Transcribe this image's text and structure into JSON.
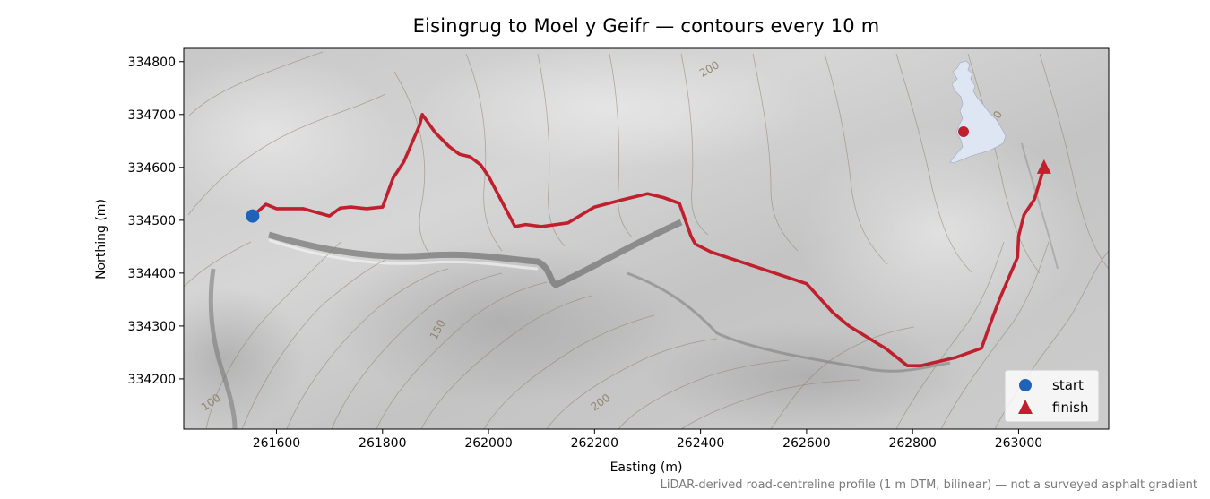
{
  "figure": {
    "title": "Eisingrug to Moel y Geifr — contours every 10 m",
    "xlabel": "Easting (m)",
    "ylabel": "Northing (m)",
    "footnote": "LiDAR-derived road-centreline profile (1 m DTM, bilinear) — not a surveyed asphalt gradient"
  },
  "chart_data": {
    "type": "line",
    "xlim": [
      261425,
      263170
    ],
    "ylim": [
      334105,
      334825
    ],
    "x_ticks": [
      261600,
      261800,
      262000,
      262200,
      262400,
      262600,
      262800,
      263000
    ],
    "y_ticks": [
      334200,
      334300,
      334400,
      334500,
      334600,
      334700,
      334800
    ],
    "grid": false,
    "basemap": "grey hillshade with brown contour lines",
    "contour_labels": [
      {
        "text": "100",
        "x": 261480,
        "y": 334150,
        "angle": -35
      },
      {
        "text": "150",
        "x": 261910,
        "y": 334290,
        "angle": -62
      },
      {
        "text": "200",
        "x": 262215,
        "y": 334150,
        "angle": -35
      },
      {
        "text": "200",
        "x": 262420,
        "y": 334780,
        "angle": -30
      },
      {
        "text": "250",
        "x": 262960,
        "y": 334685,
        "angle": -60
      }
    ],
    "series": [
      {
        "name": "route",
        "color": "#c0202e",
        "x": [
          261555,
          261580,
          261600,
          261650,
          261700,
          261720,
          261740,
          261770,
          261800,
          261820,
          261840,
          261870,
          261875,
          261900,
          261925,
          261945,
          261965,
          261985,
          262000,
          262050,
          262070,
          262100,
          262150,
          262200,
          262250,
          262300,
          262330,
          262360,
          262375,
          262382,
          262390,
          262420,
          262480,
          262600,
          262650,
          262680,
          262750,
          262790,
          262815,
          262880,
          262930,
          262945,
          262960,
          262965,
          262985,
          262998,
          263000,
          263010,
          263030,
          263048
        ],
        "y": [
          334508,
          334530,
          334522,
          334522,
          334508,
          334523,
          334525,
          334522,
          334525,
          334580,
          334610,
          334680,
          334700,
          334665,
          334640,
          334625,
          334620,
          334605,
          334583,
          334488,
          334492,
          334488,
          334495,
          334525,
          334538,
          334550,
          334543,
          334532,
          334490,
          334470,
          334455,
          334440,
          334420,
          334380,
          334325,
          334300,
          334257,
          334225,
          334225,
          334240,
          334258,
          334300,
          334340,
          334353,
          334400,
          334430,
          334470,
          334510,
          334540,
          334600
        ]
      }
    ],
    "markers": [
      {
        "label": "start",
        "x": 261555,
        "y": 334508,
        "shape": "circle",
        "color": "#1f62b8"
      },
      {
        "label": "finish",
        "x": 263048,
        "y": 334600,
        "shape": "triangle",
        "color": "#c0202e"
      }
    ],
    "legend": {
      "position": "bottom-right",
      "entries": [
        "start",
        "finish"
      ]
    },
    "inset_map": {
      "region": "Great Britain",
      "fill": "#dfe6f3",
      "marker_color": "#c0202e"
    }
  }
}
